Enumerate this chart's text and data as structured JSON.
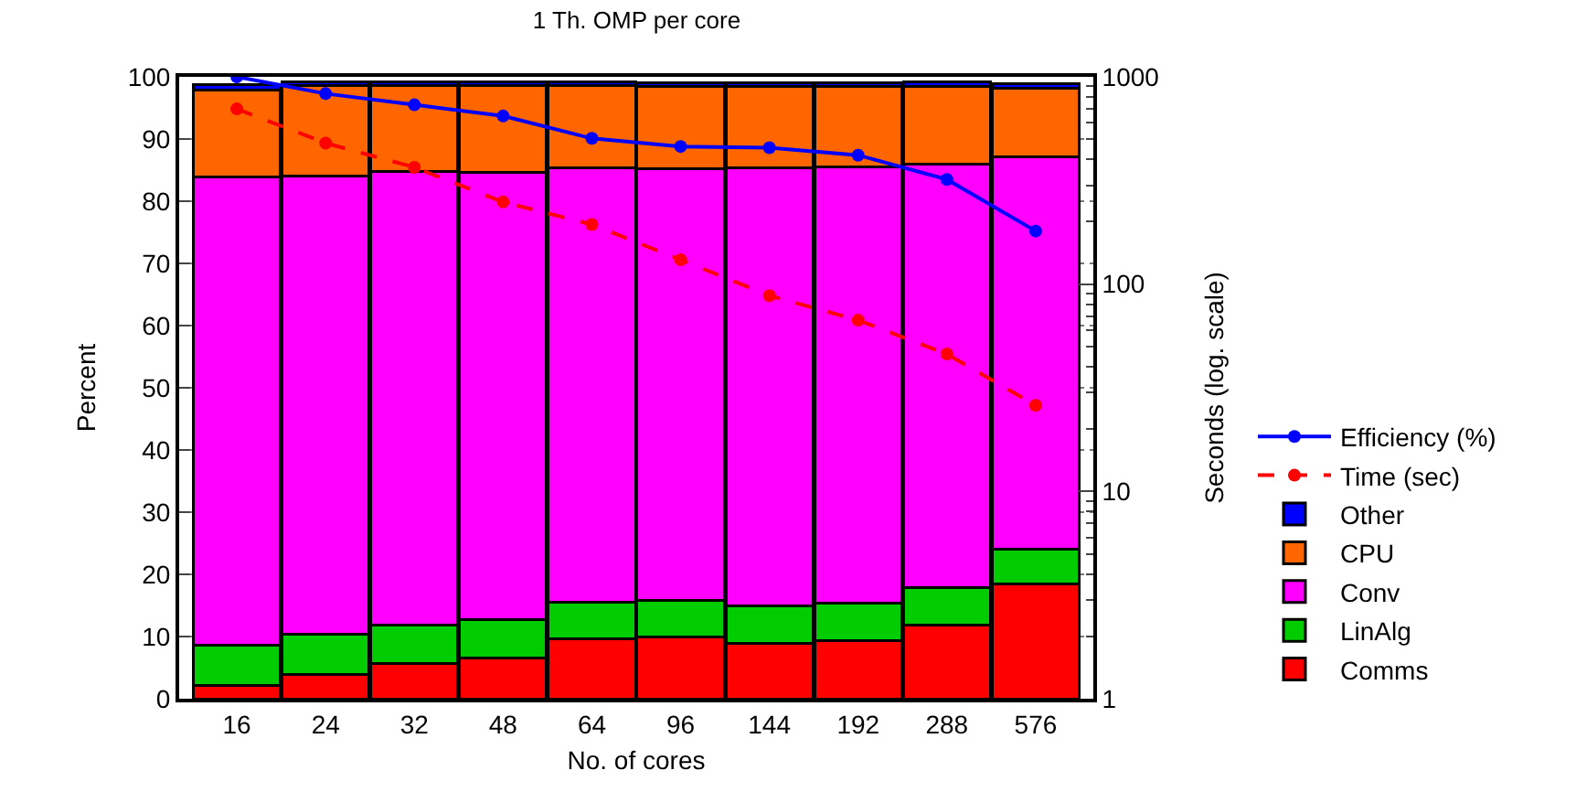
{
  "chart_data": {
    "type": "bar",
    "title": "1 Th. OMP per core",
    "xlabel": "No. of cores",
    "ylabel": "Percent",
    "y2label": "Seconds (log. scale)",
    "categories": [
      "16",
      "24",
      "32",
      "48",
      "64",
      "96",
      "144",
      "192",
      "288",
      "576"
    ],
    "stacked": true,
    "series": [
      {
        "name": "Comms",
        "color": "#ff0000",
        "values": [
          2.2,
          3.9,
          5.7,
          6.5,
          9.7,
          9.9,
          8.9,
          9.4,
          11.9,
          18.4
        ]
      },
      {
        "name": "LinAlg",
        "color": "#00cc00",
        "values": [
          6.4,
          6.4,
          6.1,
          6.2,
          5.8,
          5.9,
          6.0,
          5.9,
          5.9,
          5.7
        ]
      },
      {
        "name": "Conv",
        "color": "#ff00ff",
        "values": [
          75.3,
          73.7,
          73.0,
          72.0,
          69.9,
          69.4,
          70.5,
          70.2,
          68.2,
          63.1
        ]
      },
      {
        "name": "CPU",
        "color": "#ff6600",
        "values": [
          13.9,
          14.6,
          13.8,
          13.9,
          13.2,
          13.2,
          13.0,
          12.9,
          12.4,
          11.0
        ]
      },
      {
        "name": "Other",
        "color": "#0000ff",
        "values": [
          1.0,
          0.6,
          0.6,
          0.6,
          0.6,
          0.6,
          0.6,
          0.6,
          0.8,
          0.7
        ]
      },
      {
        "name": "Efficiency (%)",
        "type": "line",
        "color": "#0000ff",
        "line_style": "solid",
        "values": [
          100,
          97.3,
          95.5,
          93.7,
          90.1,
          88.8,
          88.6,
          87.4,
          83.5,
          75.2
        ]
      },
      {
        "name": "Time (sec)",
        "type": "line",
        "axis": "y2",
        "color": "#ff0000",
        "line_style": "dashed",
        "values": [
          700,
          479,
          366,
          249,
          194,
          131,
          88,
          67,
          46,
          26
        ]
      }
    ],
    "ylim": [
      0,
      100
    ],
    "yticks": [
      0,
      10,
      20,
      30,
      40,
      50,
      60,
      70,
      80,
      90,
      100
    ],
    "y2lim": [
      1,
      1000
    ],
    "y2ticks": [
      1,
      10,
      100,
      1000
    ],
    "log": "y2",
    "grid": "y",
    "legend": "right",
    "marker": "circle"
  }
}
